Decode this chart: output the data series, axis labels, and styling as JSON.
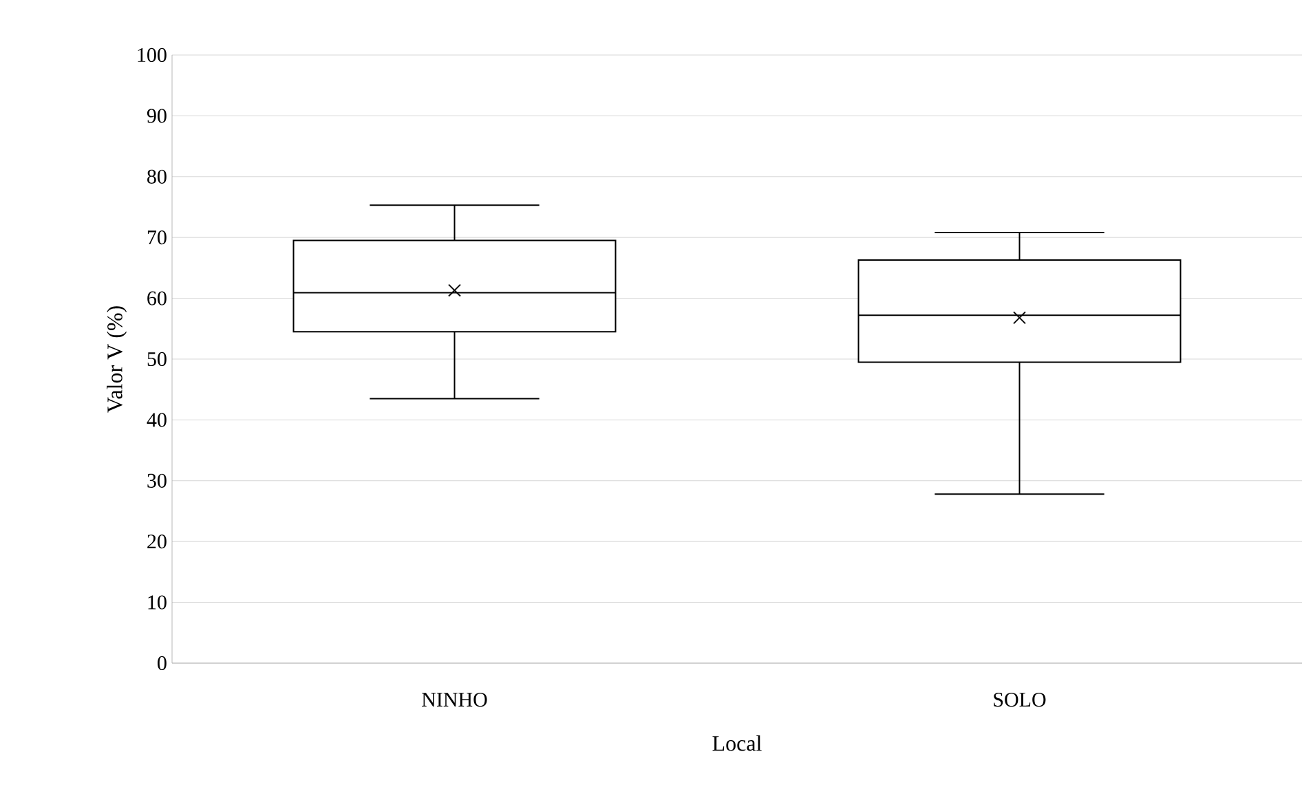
{
  "chart_data": {
    "type": "box",
    "xlabel": "Local",
    "ylabel": "Valor V (%)",
    "categories": [
      "NINHO",
      "SOLO"
    ],
    "boxes": [
      {
        "low": 43.5,
        "q1": 54.5,
        "median": 60.9,
        "q3": 69.5,
        "high": 75.3,
        "mean": 61.3
      },
      {
        "low": 27.8,
        "q1": 49.5,
        "median": 57.2,
        "q3": 66.3,
        "high": 70.8,
        "mean": 56.8
      }
    ],
    "color": "#000000",
    "ylim": [
      0,
      100
    ],
    "yticks": [
      0,
      10,
      20,
      30,
      40,
      50,
      60,
      70,
      80,
      90,
      100
    ],
    "grid": "y"
  }
}
